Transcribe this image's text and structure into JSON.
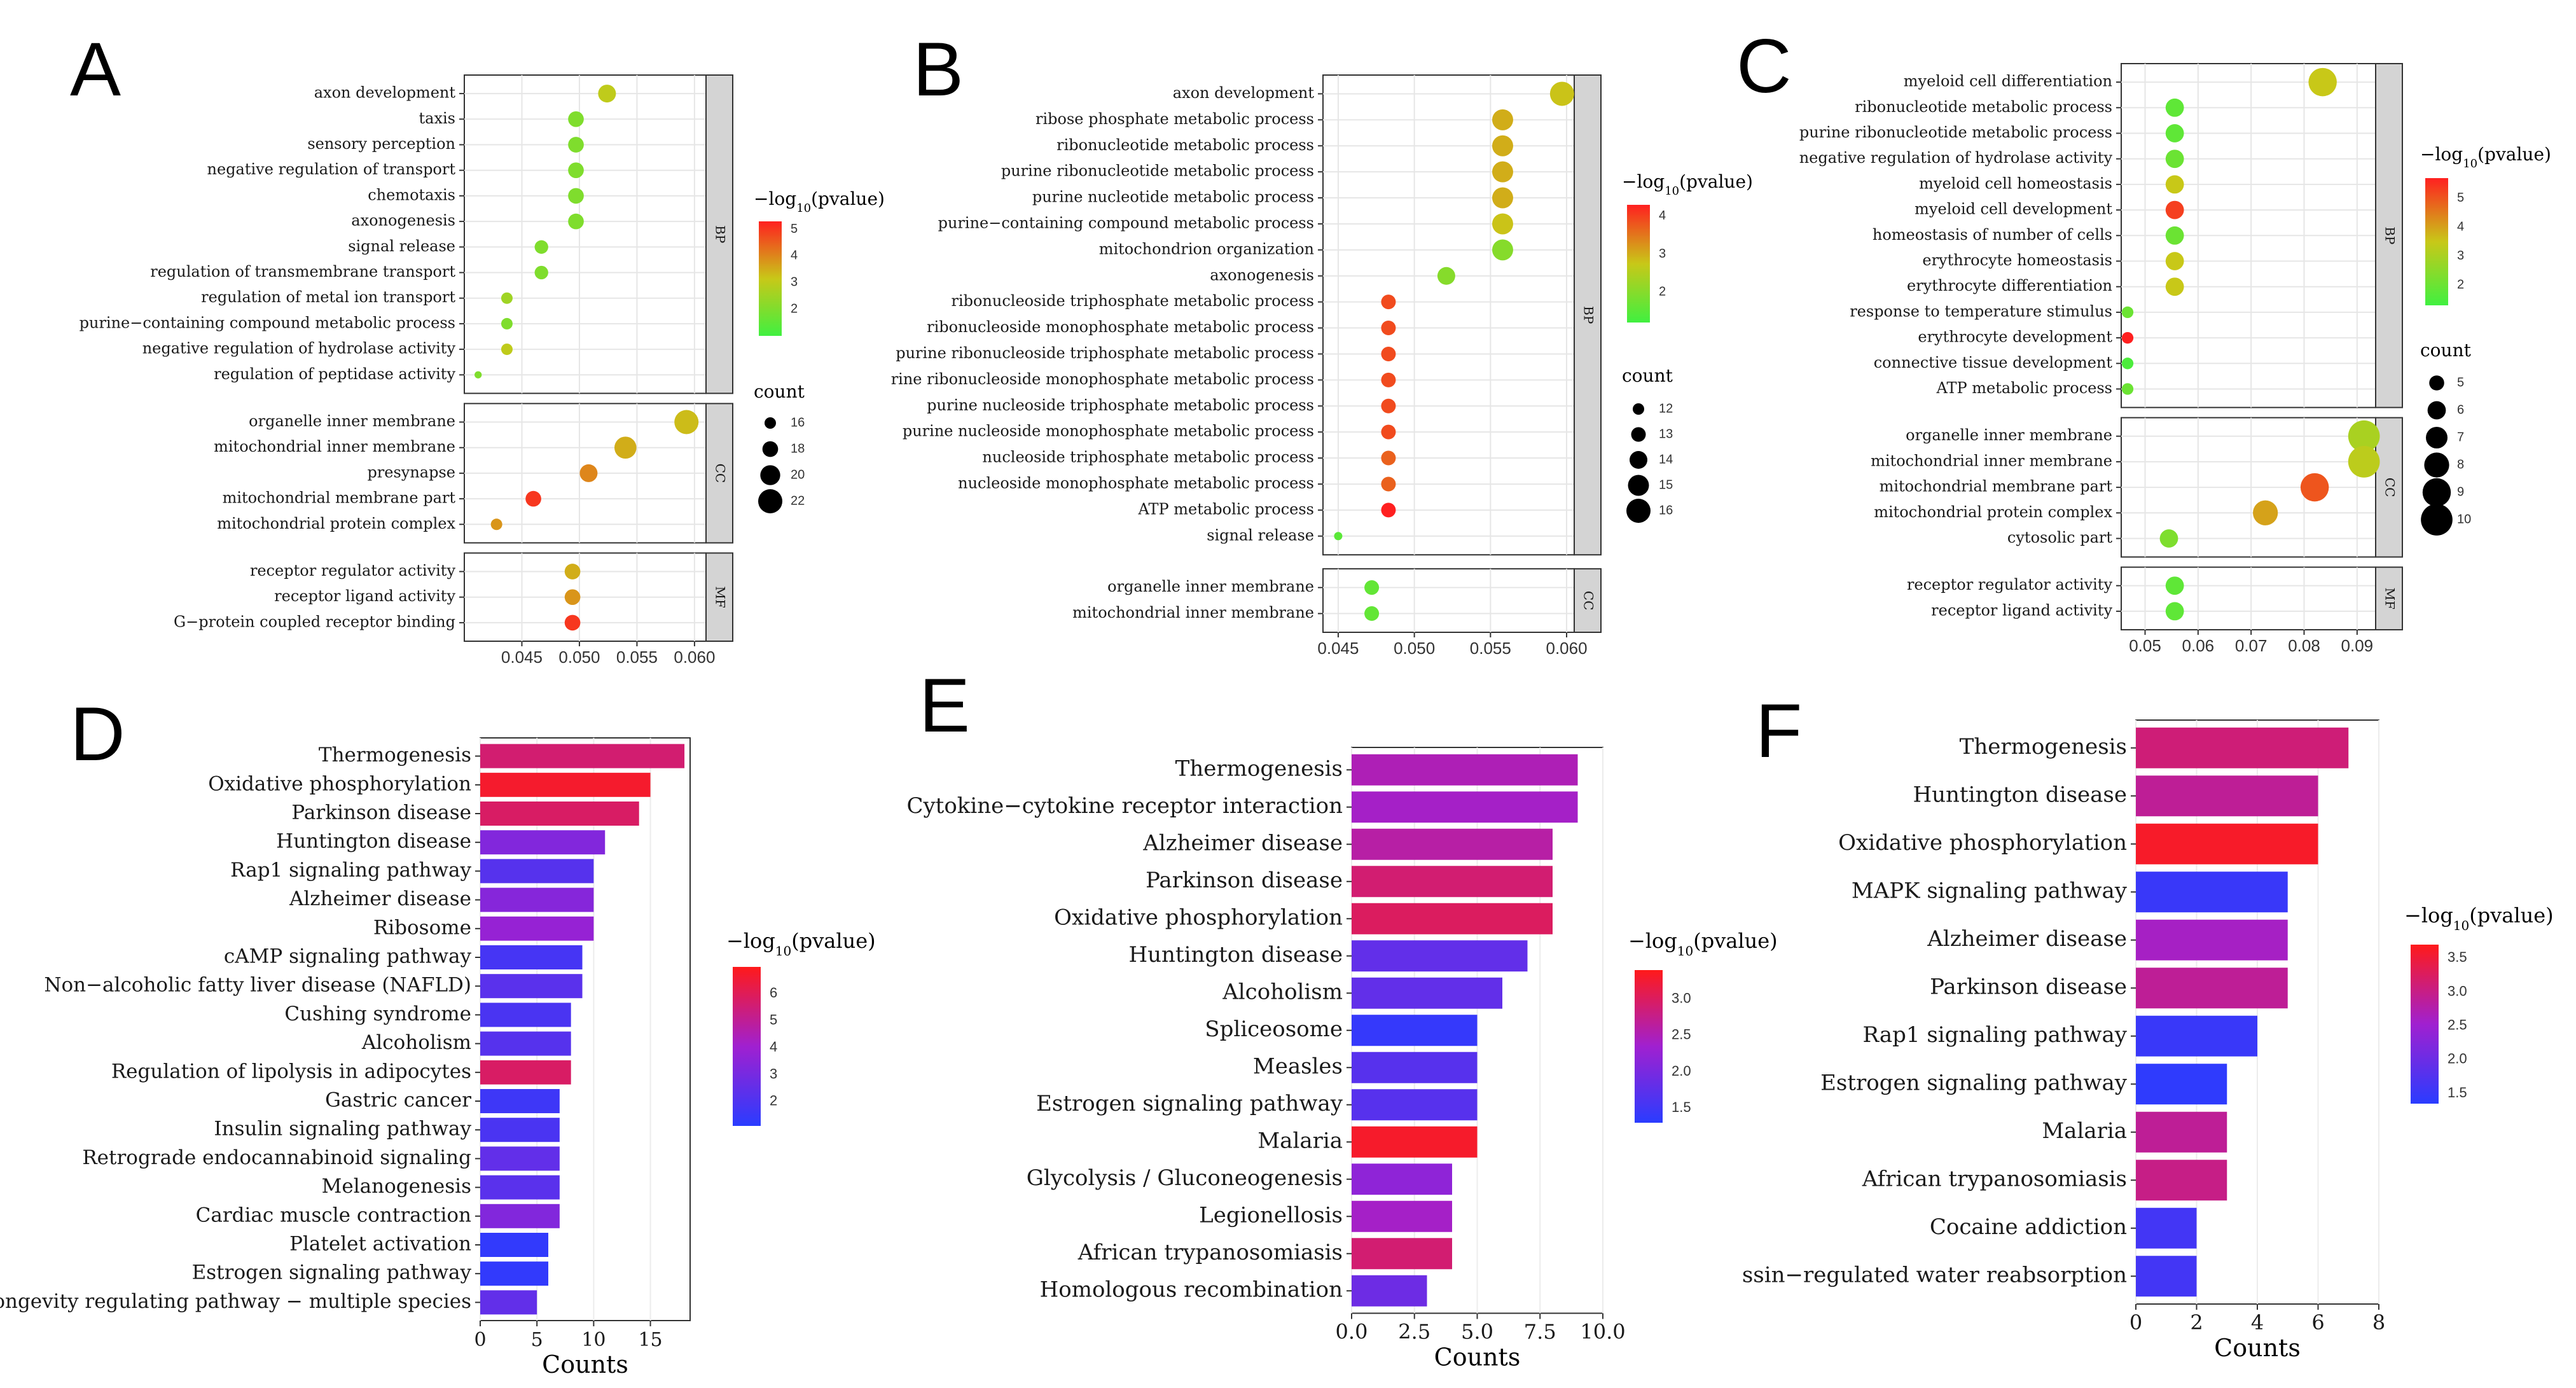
{
  "chart_data": [
    {
      "panel": "A",
      "type": "scatter",
      "xlim": [
        0.04,
        0.061
      ],
      "xticks": [
        0.045,
        0.05,
        0.055,
        0.06
      ],
      "xtick_labels": [
        "0.045",
        "0.050",
        "0.055",
        "0.060"
      ],
      "legend": {
        "color_title_sup": "10",
        "color_range": [
          1,
          5.3
        ],
        "color_ticks": [
          "5",
          "4",
          "3",
          "2"
        ],
        "size_title": "count",
        "size_values": [
          16,
          18,
          20,
          22
        ],
        "size_labels": [
          "16",
          "18",
          "20",
          "22"
        ]
      },
      "groups": [
        {
          "name": "BP",
          "items": [
            {
              "term": "axon development",
              "x": 0.0524,
              "color": 3,
              "size": 19
            },
            {
              "term": "taxis",
              "x": 0.0497,
              "color": 2,
              "size": 18
            },
            {
              "term": "sensory perception",
              "x": 0.0497,
              "color": 2,
              "size": 18
            },
            {
              "term": "negative regulation of transport",
              "x": 0.0497,
              "color": 2,
              "size": 18
            },
            {
              "term": "chemotaxis",
              "x": 0.0497,
              "color": 2,
              "size": 18
            },
            {
              "term": "axonogenesis",
              "x": 0.0497,
              "color": 2,
              "size": 18
            },
            {
              "term": "signal release",
              "x": 0.0467,
              "color": 2,
              "size": 17
            },
            {
              "term": "regulation of transmembrane transport",
              "x": 0.0467,
              "color": 2,
              "size": 17
            },
            {
              "term": "regulation of metal ion transport",
              "x": 0.0437,
              "color": 2.5,
              "size": 16
            },
            {
              "term": "purine−containing compound metabolic process",
              "x": 0.0437,
              "color": 2,
              "size": 16
            },
            {
              "term": "negative regulation of hydrolase activity",
              "x": 0.0437,
              "color": 3,
              "size": 16
            },
            {
              "term": "regulation of peptidase activity",
              "x": 0.0412,
              "color": 2,
              "size": 14
            }
          ]
        },
        {
          "name": "CC",
          "items": [
            {
              "term": "organelle inner membrane",
              "x": 0.0593,
              "color": 3.3,
              "size": 22
            },
            {
              "term": "mitochondrial inner membrane",
              "x": 0.054,
              "color": 3.5,
              "size": 21
            },
            {
              "term": "presynapse",
              "x": 0.0508,
              "color": 4,
              "size": 19
            },
            {
              "term": "mitochondrial membrane part",
              "x": 0.046,
              "color": 5,
              "size": 18
            },
            {
              "term": "mitochondrial protein complex",
              "x": 0.0428,
              "color": 3.8,
              "size": 16
            }
          ]
        },
        {
          "name": "MF",
          "items": [
            {
              "term": "receptor regulator activity",
              "x": 0.0494,
              "color": 3.5,
              "size": 18
            },
            {
              "term": "receptor ligand activity",
              "x": 0.0494,
              "color": 3.8,
              "size": 18
            },
            {
              "term": "G−protein coupled receptor binding",
              "x": 0.0494,
              "color": 5,
              "size": 18
            }
          ]
        }
      ]
    },
    {
      "panel": "B",
      "type": "scatter",
      "xlim": [
        0.044,
        0.0605
      ],
      "xticks": [
        0.045,
        0.05,
        0.055,
        0.06
      ],
      "xtick_labels": [
        "0.045",
        "0.050",
        "0.055",
        "0.060"
      ],
      "legend": {
        "color_title_sup": "10",
        "color_range": [
          1.2,
          4.3
        ],
        "color_ticks": [
          "4",
          "3",
          "2"
        ],
        "size_title": "count",
        "size_values": [
          12,
          13,
          14,
          15,
          16
        ],
        "size_labels": [
          "12",
          "13",
          "14",
          "15",
          "16"
        ]
      },
      "groups": [
        {
          "name": "BP",
          "items": [
            {
              "term": "axon development",
              "x": 0.0597,
              "color": 2.8,
              "size": 16
            },
            {
              "term": "ribose phosphate metabolic process",
              "x": 0.0558,
              "color": 3,
              "size": 15
            },
            {
              "term": "ribonucleotide metabolic process",
              "x": 0.0558,
              "color": 3,
              "size": 15
            },
            {
              "term": "purine ribonucleotide metabolic process",
              "x": 0.0558,
              "color": 3,
              "size": 15
            },
            {
              "term": "purine nucleotide metabolic process",
              "x": 0.0558,
              "color": 3,
              "size": 15
            },
            {
              "term": "purine−containing compound metabolic process",
              "x": 0.0558,
              "color": 2.8,
              "size": 15
            },
            {
              "term": "mitochondrion organization",
              "x": 0.0558,
              "color": 2,
              "size": 15
            },
            {
              "term": "axonogenesis",
              "x": 0.0521,
              "color": 2,
              "size": 14
            },
            {
              "term": "ribonucleoside triphosphate metabolic process",
              "x": 0.0483,
              "color": 3.9,
              "size": 13
            },
            {
              "term": "ribonucleoside monophosphate metabolic process",
              "x": 0.0483,
              "color": 3.9,
              "size": 13
            },
            {
              "term": "purine ribonucleoside triphosphate metabolic process",
              "x": 0.0483,
              "color": 3.9,
              "size": 13
            },
            {
              "term": "rine ribonucleoside monophosphate metabolic process",
              "x": 0.0483,
              "color": 3.9,
              "size": 13
            },
            {
              "term": "purine nucleoside triphosphate metabolic process",
              "x": 0.0483,
              "color": 3.9,
              "size": 13
            },
            {
              "term": "purine nucleoside monophosphate metabolic process",
              "x": 0.0483,
              "color": 3.9,
              "size": 13
            },
            {
              "term": "nucleoside triphosphate metabolic process",
              "x": 0.0483,
              "color": 3.7,
              "size": 13
            },
            {
              "term": "nucleoside monophosphate metabolic process",
              "x": 0.0483,
              "color": 3.7,
              "size": 13
            },
            {
              "term": "ATP metabolic process",
              "x": 0.0483,
              "color": 4.3,
              "size": 13
            },
            {
              "term": "signal release",
              "x": 0.045,
              "color": 1.5,
              "size": 11
            }
          ]
        },
        {
          "name": "CC",
          "items": [
            {
              "term": "organelle inner membrane",
              "x": 0.0472,
              "color": 1.6,
              "size": 13
            },
            {
              "term": "mitochondrial inner membrane",
              "x": 0.0472,
              "color": 1.6,
              "size": 13
            }
          ]
        }
      ]
    },
    {
      "panel": "C",
      "type": "scatter",
      "xlim": [
        0.0455,
        0.0935
      ],
      "xticks": [
        0.05,
        0.06,
        0.07,
        0.08,
        0.09
      ],
      "xtick_labels": [
        "0.05",
        "0.06",
        "0.07",
        "0.08",
        "0.09"
      ],
      "legend": {
        "color_title_sup": "10",
        "color_range": [
          1.3,
          5.7
        ],
        "color_ticks": [
          "5",
          "4",
          "3",
          "2"
        ],
        "size_title": "count",
        "size_values": [
          5,
          6,
          7,
          8,
          9,
          10
        ],
        "size_labels": [
          "5",
          "6",
          "7",
          "8",
          "9",
          "10"
        ]
      },
      "groups": [
        {
          "name": "BP",
          "items": [
            {
              "term": "myeloid cell differentiation",
              "x": 0.0835,
              "color": 3.5,
              "size": 9
            },
            {
              "term": "ribonucleotide metabolic process",
              "x": 0.0556,
              "color": 1.8,
              "size": 6
            },
            {
              "term": "purine ribonucleotide metabolic process",
              "x": 0.0556,
              "color": 1.8,
              "size": 6
            },
            {
              "term": "negative regulation of hydrolase activity",
              "x": 0.0556,
              "color": 2,
              "size": 6
            },
            {
              "term": "myeloid cell homeostasis",
              "x": 0.0556,
              "color": 3.5,
              "size": 6
            },
            {
              "term": "myeloid cell development",
              "x": 0.0556,
              "color": 5.3,
              "size": 6
            },
            {
              "term": "homeostasis of number of cells",
              "x": 0.0556,
              "color": 2,
              "size": 6
            },
            {
              "term": "erythrocyte homeostasis",
              "x": 0.0556,
              "color": 3.5,
              "size": 6
            },
            {
              "term": "erythrocyte differentiation",
              "x": 0.0556,
              "color": 3.5,
              "size": 6
            },
            {
              "term": "response to temperature stimulus",
              "x": 0.0467,
              "color": 2,
              "size": 4
            },
            {
              "term": "erythrocyte development",
              "x": 0.0467,
              "color": 5.7,
              "size": 4
            },
            {
              "term": "connective tissue development",
              "x": 0.0467,
              "color": 1.5,
              "size": 4
            },
            {
              "term": "ATP metabolic process",
              "x": 0.0467,
              "color": 2,
              "size": 4
            }
          ]
        },
        {
          "name": "CC",
          "items": [
            {
              "term": "organelle inner membrane",
              "x": 0.0913,
              "color": 3,
              "size": 10
            },
            {
              "term": "mitochondrial inner membrane",
              "x": 0.0913,
              "color": 3.3,
              "size": 10
            },
            {
              "term": "mitochondrial membrane part",
              "x": 0.082,
              "color": 5,
              "size": 9
            },
            {
              "term": "mitochondrial protein complex",
              "x": 0.0727,
              "color": 4,
              "size": 8
            },
            {
              "term": "cytosolic part",
              "x": 0.0545,
              "color": 2.3,
              "size": 6
            }
          ]
        },
        {
          "name": "MF",
          "items": [
            {
              "term": "receptor regulator activity",
              "x": 0.0556,
              "color": 1.8,
              "size": 6
            },
            {
              "term": "receptor ligand activity",
              "x": 0.0556,
              "color": 1.8,
              "size": 6
            }
          ]
        }
      ]
    },
    {
      "panel": "D",
      "type": "bar",
      "orientation": "horizontal",
      "xlabel": "Counts",
      "xlim": [
        0,
        18.5
      ],
      "xticks": [
        0,
        5,
        10,
        15
      ],
      "xtick_labels": [
        "0",
        "5",
        "10",
        "15"
      ],
      "legend": {
        "color_title_sup": "10",
        "color_range": [
          1.1,
          7
        ],
        "color_ticks": [
          "6",
          "5",
          "4",
          "3",
          "2"
        ]
      },
      "categories": [
        "Thermogenesis",
        "Oxidative phosphorylation",
        "Parkinson disease",
        "Huntington disease",
        "Rap1 signaling pathway",
        "Alzheimer disease",
        "Ribosome",
        "cAMP signaling pathway",
        "Non−alcoholic fatty liver disease (NAFLD)",
        "Cushing syndrome",
        "Alcoholism",
        "Regulation of lipolysis in adipocytes",
        "Gastric cancer",
        "Insulin signaling pathway",
        "Retrograde endocannabinoid signaling",
        "Melanogenesis",
        "Cardiac muscle contraction",
        "Platelet activation",
        "Estrogen signaling pathway",
        "Longevity regulating pathway − multiple species"
      ],
      "values": [
        18,
        15,
        14,
        11,
        10,
        10,
        10,
        9,
        9,
        8,
        8,
        8,
        7,
        7,
        7,
        7,
        7,
        6,
        6,
        5
      ],
      "color_values": [
        5.6,
        6.7,
        5.8,
        3.3,
        2.2,
        3.4,
        3.8,
        1.8,
        2.3,
        1.9,
        2.2,
        5.8,
        1.6,
        1.9,
        2.5,
        2.3,
        3.3,
        1.3,
        1.3,
        2.5
      ]
    },
    {
      "panel": "E",
      "type": "bar",
      "orientation": "horizontal",
      "xlabel": "Counts",
      "xlim": [
        0,
        10
      ],
      "xticks": [
        0,
        2.5,
        5,
        7.5,
        10
      ],
      "xtick_labels": [
        "0.0",
        "2.5",
        "5.0",
        "7.5",
        "10.0"
      ],
      "legend": {
        "color_title_sup": "10",
        "color_range": [
          1.3,
          3.4
        ],
        "color_ticks": [
          "3.0",
          "2.5",
          "2.0",
          "1.5"
        ]
      },
      "categories": [
        "Thermogenesis",
        "Cytokine−cytokine receptor interaction",
        "Alzheimer disease",
        "Parkinson disease",
        "Oxidative phosphorylation",
        "Huntington disease",
        "Alcoholism",
        "Spliceosome",
        "Measles",
        "Estrogen signaling pathway",
        "Malaria",
        "Glycolysis / Gluconeogenesis",
        "Legionellosis",
        "African trypanosomiasis",
        "Homologous recombination"
      ],
      "values": [
        9,
        9,
        8,
        8,
        8,
        7,
        6,
        5,
        5,
        5,
        5,
        4,
        4,
        4,
        3
      ],
      "color_values": [
        2.5,
        2.4,
        2.6,
        2.9,
        3.0,
        1.8,
        1.8,
        1.4,
        1.7,
        1.7,
        3.3,
        2.2,
        2.4,
        2.9,
        1.9
      ]
    },
    {
      "panel": "F",
      "type": "bar",
      "orientation": "horizontal",
      "xlabel": "Counts",
      "xlim": [
        0,
        8
      ],
      "xticks": [
        0,
        2,
        4,
        6,
        8
      ],
      "xtick_labels": [
        "0",
        "2",
        "4",
        "6",
        "8"
      ],
      "legend": {
        "color_title_sup": "10",
        "color_range": [
          1.35,
          3.7
        ],
        "color_ticks": [
          "3.5",
          "3.0",
          "2.5",
          "2.0",
          "1.5"
        ]
      },
      "categories": [
        "Thermogenesis",
        "Huntington disease",
        "Oxidative phosphorylation",
        "MAPK signaling pathway",
        "Alzheimer disease",
        "Parkinson disease",
        "Rap1 signaling pathway",
        "Estrogen signaling pathway",
        "Malaria",
        "African trypanosomiasis",
        "Cocaine addiction",
        "ssin−regulated water reabsorption"
      ],
      "values": [
        7,
        6,
        6,
        5,
        5,
        5,
        4,
        3,
        3,
        3,
        2,
        2
      ],
      "color_values": [
        3.1,
        2.9,
        3.6,
        1.5,
        2.6,
        2.9,
        1.5,
        1.4,
        2.9,
        3.0,
        1.6,
        1.6
      ]
    }
  ]
}
